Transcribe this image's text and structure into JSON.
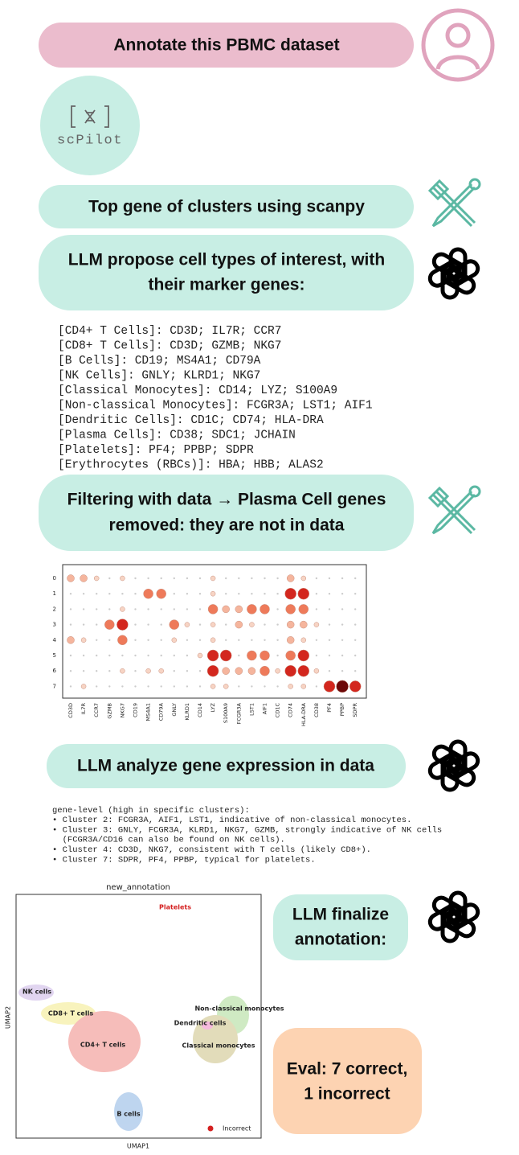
{
  "user_prompt": "Annotate this PBMC dataset",
  "logo": {
    "name": "scPilot"
  },
  "step1": "Top gene of clusters using scanpy",
  "step2": [
    "LLM propose cell types of interest, with",
    "their marker genes:"
  ],
  "marker_list": [
    "[CD4+ T Cells]: CD3D; IL7R; CCR7",
    "[CD8+ T Cells]: CD3D; GZMB; NKG7",
    "[B Cells]: CD19; MS4A1; CD79A",
    "[NK Cells]: GNLY; KLRD1; NKG7",
    "[Classical Monocytes]: CD14; LYZ; S100A9",
    "[Non-classical Monocytes]: FCGR3A; LST1; AIF1",
    "[Dendritic Cells]: CD1C; CD74; HLA-DRA",
    "[Plasma Cells]: CD38; SDC1; JCHAIN",
    "[Platelets]: PF4; PPBP; SDPR",
    "[Erythrocytes (RBCs)]: HBA; HBB; ALAS2"
  ],
  "step3": [
    "Filtering with data → Plasma Cell genes",
    "removed: they are not in data"
  ],
  "dotplot": {
    "clusters": [
      "0",
      "1",
      "2",
      "3",
      "4",
      "5",
      "6",
      "7"
    ],
    "genes": [
      "CD3D",
      "IL7R",
      "CCR7",
      "GZMB",
      "NKG7",
      "CD19",
      "MS4A1",
      "CD79A",
      "GNLY",
      "KLRD1",
      "CD14",
      "LYZ",
      "S100A9",
      "FCGR3A",
      "LST1",
      "AIF1",
      "CD1C",
      "CD74",
      "HLA-DRA",
      "CD38",
      "PF4",
      "PPBP",
      "SDPR"
    ],
    "levels": [
      [
        2,
        2,
        1,
        0,
        1,
        0,
        0,
        0,
        0,
        0,
        0,
        1,
        0,
        0,
        0,
        0,
        0,
        2,
        1,
        0,
        0,
        0,
        0
      ],
      [
        0,
        0,
        0,
        0,
        0,
        0,
        3,
        3,
        0,
        0,
        0,
        1,
        0,
        0,
        0,
        0,
        0,
        4,
        4,
        0,
        0,
        0,
        0
      ],
      [
        0,
        0,
        0,
        0,
        1,
        0,
        0,
        0,
        0,
        0,
        0,
        3,
        2,
        2,
        3,
        3,
        0,
        3,
        3,
        0,
        0,
        0,
        0
      ],
      [
        0,
        0,
        0,
        3,
        4,
        0,
        0,
        0,
        3,
        1,
        0,
        1,
        0,
        2,
        1,
        0,
        0,
        2,
        2,
        1,
        0,
        0,
        0
      ],
      [
        2,
        1,
        0,
        0,
        3,
        0,
        0,
        0,
        1,
        0,
        0,
        1,
        0,
        0,
        0,
        0,
        0,
        2,
        1,
        0,
        0,
        0,
        0
      ],
      [
        0,
        0,
        0,
        0,
        0,
        0,
        0,
        0,
        0,
        0,
        1,
        4,
        4,
        0,
        3,
        3,
        0,
        3,
        4,
        0,
        0,
        0,
        0
      ],
      [
        0,
        0,
        0,
        0,
        1,
        0,
        1,
        1,
        0,
        0,
        0,
        4,
        2,
        2,
        2,
        3,
        1,
        4,
        4,
        1,
        0,
        0,
        0
      ],
      [
        0,
        1,
        0,
        0,
        0,
        0,
        0,
        0,
        0,
        0,
        0,
        1,
        1,
        0,
        0,
        0,
        0,
        1,
        1,
        0,
        4,
        5,
        4
      ]
    ]
  },
  "step4": "LLM analyze gene expression in data",
  "analysis": [
    "gene-level (high in specific clusters):",
    "• Cluster 2: FCGR3A, AIF1, LST1, indicative of non-classical monocytes.",
    "• Cluster 3: GNLY, FCGR3A, KLRD1, NKG7, GZMB, strongly indicative of NK cells",
    "  (FCGR3A/CD16 can also be found on NK cells).",
    "• Cluster 4: CD3D, NKG7, consistent with T cells (likely CD8+).",
    "• Cluster 7: SDPR, PF4, PPBP, typical for platelets."
  ],
  "umap": {
    "title": "new_annotation",
    "xlabel": "UMAP1",
    "ylabel": "UMAP2",
    "labels": [
      "Platelets",
      "NK cells",
      "CD8+ T cells",
      "CD4+ T cells",
      "B cells",
      "Non-classical monocytes",
      "Dendritic cells",
      "Classical monocytes"
    ],
    "legend": "Incorrect"
  },
  "step5": [
    "LLM finalize",
    "annotation:"
  ],
  "eval": [
    "Eval: 7 correct,",
    "1 incorrect"
  ]
}
